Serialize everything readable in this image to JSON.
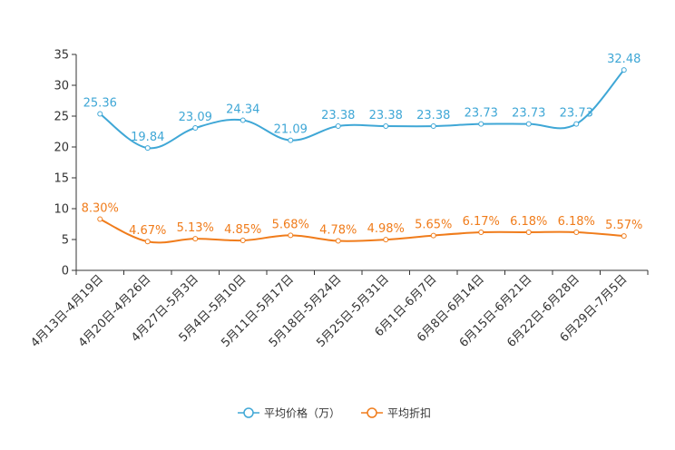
{
  "chart_data": {
    "type": "line",
    "categories": [
      "4月13日-4月19日",
      "4月20日-4月26日",
      "4月27日-5月3日",
      "5月4日-5月10日",
      "5月11日-5月17日",
      "5月18日-5月24日",
      "5月25日-5月31日",
      "6月1日-6月7日",
      "6月8日-6月14日",
      "6月15日-6月21日",
      "6月22日-6月28日",
      "6月29日-7月5日"
    ],
    "ylim": [
      0,
      35
    ],
    "yticks": [
      0,
      5,
      10,
      15,
      20,
      25,
      30,
      35
    ],
    "series": [
      {
        "name": "平均价格（万）",
        "color": "#3fa7d6",
        "values": [
          25.36,
          19.84,
          23.09,
          24.34,
          21.09,
          23.38,
          23.38,
          23.38,
          23.73,
          23.73,
          23.73,
          32.48
        ],
        "labels": [
          "25.36",
          "19.84",
          "23.09",
          "24.34",
          "21.09",
          "23.38",
          "23.38",
          "23.38",
          "23.73",
          "23.73",
          "23.73",
          "32.48"
        ]
      },
      {
        "name": "平均折扣",
        "color": "#f07c1b",
        "values": [
          8.3,
          4.67,
          5.13,
          4.85,
          5.68,
          4.78,
          4.98,
          5.65,
          6.17,
          6.18,
          6.18,
          5.57
        ],
        "labels": [
          "8.30%",
          "4.67%",
          "5.13%",
          "4.85%",
          "5.68%",
          "4.78%",
          "4.98%",
          "5.65%",
          "6.17%",
          "6.18%",
          "6.18%",
          "5.57%"
        ]
      }
    ],
    "legend_position": "bottom-center"
  }
}
